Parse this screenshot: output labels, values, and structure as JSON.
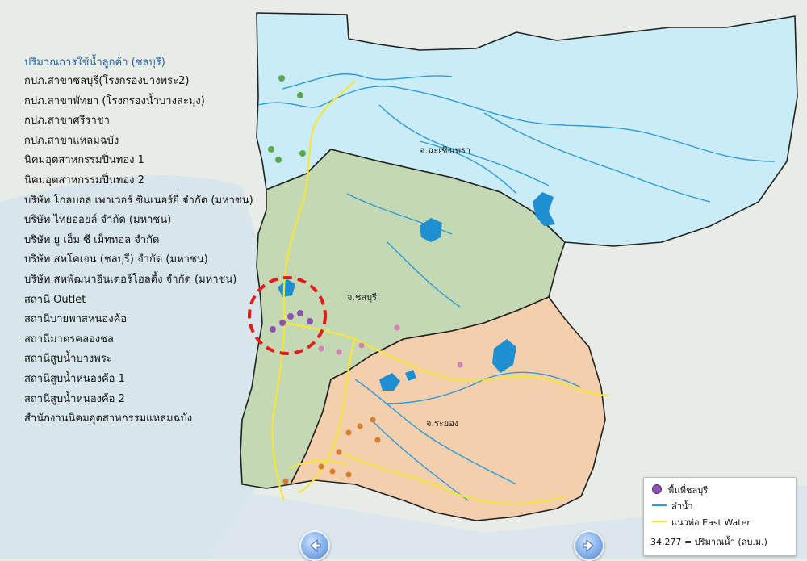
{
  "list": {
    "title": "ปริมาณการใช้น้ำลูกค้า (ชลบุรี)",
    "items": [
      "กปภ.สาขาชลบุรี(โรงกรองบางพระ2)",
      "กปภ.สาขาพัทยา (โรงกรองน้ำบางละมุง)",
      "กปภ.สาขาศรีราชา",
      "กปภ.สาขาแหลมฉบัง",
      "นิคมอุตสาหกรรมปิ่นทอง 1",
      "นิคมอุตสาหกรรมปิ่นทอง 2",
      "บริษัท โกลบอล เพาเวอร์ ซินเนอร์ยี่ จำกัด (มหาชน)",
      "บริษัท ไทยออยล์ จำกัด (มหาชน)",
      "บริษัท ยู เอ็ม ซี เม็ททอล จำกัด",
      "บริษัท สหโคเจน (ชลบุรี) จำกัด (มหาชน)",
      "บริษัท สหพัฒนาอินเตอร์โฮลดิ้ง จำกัด (มหาชน)",
      "สถานี Outlet",
      "สถานีบายพาสหนองค้อ",
      "สถานีมาตรคลองชล",
      "สถานีสูบน้ำบางพระ",
      "สถานีสูบน้ำหนองค้อ 1",
      "สถานีสูบน้ำหนองค้อ 2",
      "สำนักงานนิคมอุตสาหกรรมแหลมฉบัง"
    ]
  },
  "regions": {
    "chachoengsao": "จ.ฉะเชิงเทรา",
    "chonburi": "จ.ชลบุรี",
    "rayong": "จ.ระยอง"
  },
  "legend": {
    "area": "พื้นที่ชลบุรี",
    "river": "ลำน้ำ",
    "pipeline": "แนวท่อ East Water",
    "volume": "34,277 = ปริมาณน้ำ (ลบ.ม.)"
  },
  "colors": {
    "chachoengsao_fill": "#c9ecf6",
    "chonburi_fill": "#c5d8b4",
    "rayong_fill": "#f3cfae",
    "river": "#2f9bd6",
    "pipeline": "#f5e63c",
    "area_point": "#8b54b0",
    "highlight_circle": "#e21b1b"
  },
  "icons": {
    "prev": "left-arrow-icon",
    "next": "right-arrow-icon"
  }
}
